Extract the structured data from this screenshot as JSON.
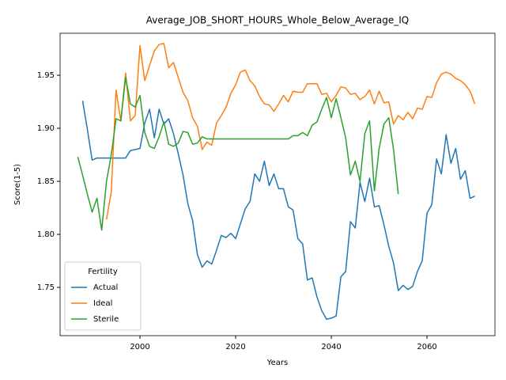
{
  "chart_data": {
    "type": "line",
    "title": "Average_JOB_SHORT_HOURS_Whole_Below_Average_IQ",
    "x_label": "Years",
    "y_label": "Score(1-5)",
    "x": [
      1987,
      1988,
      1989,
      1990,
      1991,
      1992,
      1993,
      1994,
      1995,
      1996,
      1997,
      1998,
      1999,
      2000,
      2001,
      2002,
      2003,
      2004,
      2005,
      2006,
      2007,
      2008,
      2009,
      2010,
      2011,
      2012,
      2013,
      2014,
      2015,
      2016,
      2017,
      2018,
      2019,
      2020,
      2021,
      2022,
      2023,
      2024,
      2025,
      2026,
      2027,
      2028,
      2029,
      2030,
      2031,
      2032,
      2033,
      2034,
      2035,
      2036,
      2037,
      2038,
      2039,
      2040,
      2041,
      2042,
      2043,
      2044,
      2045,
      2046,
      2047,
      2048,
      2049,
      2050,
      2051,
      2052,
      2053,
      2054,
      2055,
      2056,
      2057,
      2058,
      2059,
      2060,
      2061,
      2062,
      2063,
      2064,
      2065,
      2066,
      2067,
      2068,
      2069,
      2070
    ],
    "series": [
      {
        "name": "Actual",
        "color": "#1f77b4",
        "values": [
          null,
          1.926,
          1.899,
          1.87,
          1.872,
          1.872,
          1.872,
          1.872,
          1.872,
          1.872,
          1.872,
          1.879,
          1.88,
          1.881,
          1.905,
          1.918,
          1.891,
          1.918,
          1.904,
          1.909,
          1.895,
          1.876,
          1.856,
          1.829,
          1.813,
          1.781,
          1.769,
          1.775,
          1.772,
          1.785,
          1.799,
          1.797,
          1.801,
          1.796,
          1.81,
          1.824,
          1.831,
          1.857,
          1.85,
          1.869,
          1.846,
          1.857,
          1.843,
          1.843,
          1.826,
          1.823,
          1.796,
          1.791,
          1.757,
          1.759,
          1.741,
          1.728,
          1.72,
          1.721,
          1.723,
          1.76,
          1.765,
          1.812,
          1.806,
          1.849,
          1.831,
          1.853,
          1.826,
          1.827,
          1.809,
          1.789,
          1.773,
          1.747,
          1.752,
          1.748,
          1.751,
          1.765,
          1.775,
          1.82,
          1.828,
          1.871,
          1.857,
          1.894,
          1.867,
          1.881,
          1.852,
          1.86,
          1.834,
          1.836
        ]
      },
      {
        "name": "Ideal",
        "color": "#ff7f0e",
        "values": [
          null,
          null,
          null,
          null,
          null,
          null,
          1.814,
          1.84,
          1.936,
          1.907,
          1.952,
          1.907,
          1.912,
          1.978,
          1.945,
          1.959,
          1.973,
          1.979,
          1.98,
          1.957,
          1.962,
          1.948,
          1.934,
          1.926,
          1.91,
          1.902,
          1.88,
          1.887,
          1.884,
          1.905,
          1.912,
          1.92,
          1.933,
          1.941,
          1.953,
          1.955,
          1.945,
          1.94,
          1.93,
          1.923,
          1.922,
          1.916,
          1.923,
          1.931,
          1.925,
          1.935,
          1.934,
          1.934,
          1.942,
          1.942,
          1.942,
          1.932,
          1.933,
          1.925,
          1.931,
          1.939,
          1.938,
          1.932,
          1.933,
          1.927,
          1.93,
          1.936,
          1.923,
          1.935,
          1.924,
          1.925,
          1.904,
          1.912,
          1.908,
          1.915,
          1.909,
          1.919,
          1.918,
          1.93,
          1.929,
          1.943,
          1.951,
          1.953,
          1.951,
          1.947,
          1.945,
          1.941,
          1.935,
          1.923
        ]
      },
      {
        "name": "Sterile",
        "color": "#2ca02c",
        "values": [
          1.873,
          1.856,
          1.838,
          1.821,
          1.834,
          1.804,
          1.85,
          1.875,
          1.909,
          1.907,
          1.948,
          1.923,
          1.92,
          1.931,
          1.896,
          1.883,
          1.881,
          1.892,
          1.906,
          1.885,
          1.883,
          1.886,
          1.897,
          1.896,
          1.885,
          1.886,
          1.892,
          1.89,
          1.89,
          1.89,
          1.89,
          1.89,
          1.89,
          1.89,
          1.89,
          1.89,
          1.89,
          1.89,
          1.89,
          1.89,
          1.89,
          1.89,
          1.89,
          1.89,
          1.89,
          1.893,
          1.893,
          1.896,
          1.893,
          1.903,
          1.906,
          1.918,
          1.929,
          1.91,
          1.928,
          1.91,
          1.891,
          1.856,
          1.869,
          1.85,
          1.895,
          1.907,
          1.841,
          1.881,
          1.904,
          1.91,
          1.88,
          1.838,
          null,
          null,
          null,
          null,
          null,
          null,
          null,
          null,
          null,
          null,
          null,
          null,
          null,
          null,
          null,
          null
        ]
      }
    ],
    "xlim": [
      1983.3,
      2074.2
    ],
    "ylim": [
      1.7045,
      1.9896
    ],
    "xticks": [
      2000,
      2020,
      2040,
      2060
    ],
    "yticks": [
      1.75,
      {
        "value": 1.8,
        "label": "1.80"
      },
      1.85,
      {
        "value": 1.9,
        "label": "1.90"
      },
      1.95
    ],
    "legend_title": "Fertility",
    "legend": "lower left",
    "grid": false
  }
}
